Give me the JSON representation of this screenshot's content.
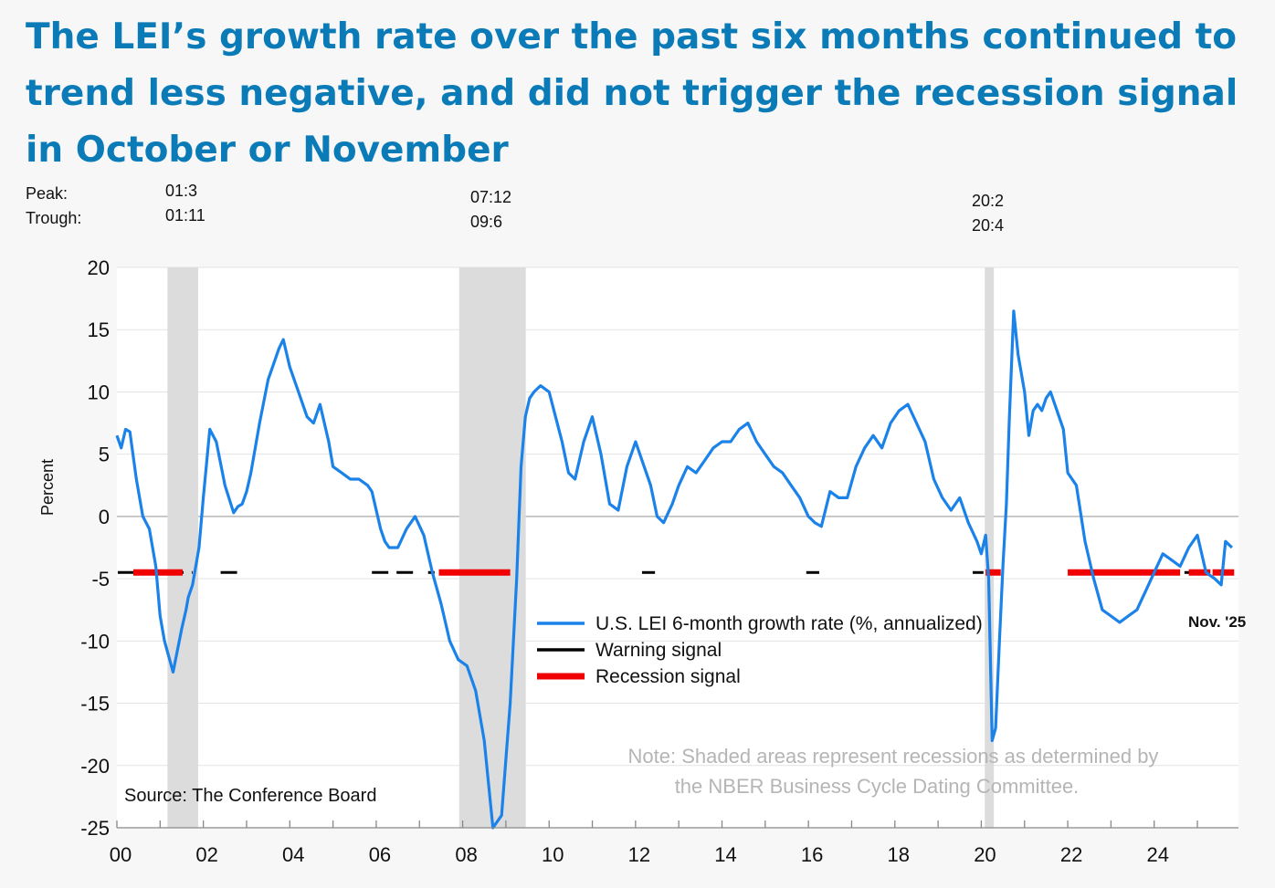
{
  "title": "The LEI’s growth rate over the past six months continued to trend less negative, and did not trigger the recession signal in October or November",
  "peak_trough": {
    "peak_label": "Peak:",
    "trough_label": "Trough:",
    "dates": [
      {
        "peak": "01:3",
        "trough": "01:11"
      },
      {
        "peak": "07:12",
        "trough": "09:6"
      },
      {
        "peak": "20:2",
        "trough": "20:4"
      }
    ]
  },
  "chart_data": {
    "type": "line",
    "ylabel": "Percent",
    "ylim": [
      -25,
      20
    ],
    "yticks": [
      20,
      15,
      10,
      5,
      0,
      -5,
      -10,
      -15,
      -20,
      -25
    ],
    "xlim": [
      2000,
      2025.95
    ],
    "xticks": [
      {
        "x": 2000,
        "label": "00"
      },
      {
        "x": 2002,
        "label": "02"
      },
      {
        "x": 2004,
        "label": "04"
      },
      {
        "x": 2006,
        "label": "06"
      },
      {
        "x": 2008,
        "label": "08"
      },
      {
        "x": 2010,
        "label": "10"
      },
      {
        "x": 2012,
        "label": "12"
      },
      {
        "x": 2014,
        "label": "14"
      },
      {
        "x": 2016,
        "label": "16"
      },
      {
        "x": 2018,
        "label": "18"
      },
      {
        "x": 2020,
        "label": "20"
      },
      {
        "x": 2022,
        "label": "22"
      },
      {
        "x": 2024,
        "label": "24"
      }
    ],
    "recessions": [
      [
        2001.17,
        2001.88
      ],
      [
        2007.92,
        2009.46
      ],
      [
        2020.08,
        2020.29
      ]
    ],
    "series": [
      {
        "name": "U.S. LEI 6-month growth rate (%, annualized)",
        "color": "#1a82e8",
        "x": [
          2000.0,
          2000.1,
          2000.2,
          2000.3,
          2000.45,
          2000.6,
          2000.75,
          2000.9,
          2001.0,
          2001.1,
          2001.3,
          2001.5,
          2001.6,
          2001.65,
          2001.75,
          2001.9,
          2002.0,
          2002.15,
          2002.3,
          2002.5,
          2002.7,
          2002.8,
          2002.9,
          2003.0,
          2003.1,
          2003.3,
          2003.5,
          2003.6,
          2003.75,
          2003.85,
          2004.0,
          2004.2,
          2004.4,
          2004.55,
          2004.7,
          2004.9,
          2005.0,
          2005.2,
          2005.4,
          2005.6,
          2005.8,
          2005.9,
          2006.1,
          2006.2,
          2006.3,
          2006.5,
          2006.7,
          2006.9,
          2007.1,
          2007.3,
          2007.5,
          2007.7,
          2007.9,
          2008.1,
          2008.3,
          2008.5,
          2008.7,
          2008.9,
          2009.1,
          2009.25,
          2009.35,
          2009.45,
          2009.55,
          2009.65,
          2009.8,
          2010.0,
          2010.15,
          2010.3,
          2010.45,
          2010.6,
          2010.8,
          2011.0,
          2011.2,
          2011.4,
          2011.6,
          2011.8,
          2012.0,
          2012.2,
          2012.35,
          2012.5,
          2012.65,
          2012.85,
          2013.0,
          2013.2,
          2013.4,
          2013.6,
          2013.8,
          2014.0,
          2014.2,
          2014.4,
          2014.6,
          2014.8,
          2015.0,
          2015.2,
          2015.4,
          2015.6,
          2015.8,
          2016.0,
          2016.15,
          2016.3,
          2016.5,
          2016.7,
          2016.9,
          2017.1,
          2017.3,
          2017.5,
          2017.7,
          2017.9,
          2018.1,
          2018.3,
          2018.5,
          2018.7,
          2018.9,
          2019.1,
          2019.3,
          2019.5,
          2019.7,
          2019.9,
          2020.0,
          2020.1,
          2020.17,
          2020.25,
          2020.33,
          2020.42,
          2020.5,
          2020.58,
          2020.65,
          2020.75,
          2020.85,
          2021.0,
          2021.1,
          2021.2,
          2021.3,
          2021.4,
          2021.5,
          2021.6,
          2021.8,
          2021.9,
          2022.0,
          2022.2,
          2022.4,
          2022.6,
          2022.8,
          2023.0,
          2023.2,
          2023.4,
          2023.6,
          2023.8,
          2024.0,
          2024.2,
          2024.4,
          2024.6,
          2024.8,
          2025.0,
          2025.2,
          2025.4,
          2025.55,
          2025.65,
          2025.8
        ],
        "y": [
          6.5,
          5.5,
          7.0,
          6.8,
          3.0,
          0.0,
          -1.0,
          -4.0,
          -8.0,
          -10.0,
          -12.5,
          -9.0,
          -7.5,
          -6.5,
          -5.5,
          -2.5,
          1.5,
          7.0,
          6.0,
          2.5,
          0.3,
          0.8,
          1.0,
          2.0,
          3.5,
          7.5,
          11.0,
          12.0,
          13.5,
          14.2,
          12.0,
          10.0,
          8.0,
          7.5,
          9.0,
          6.0,
          4.0,
          3.5,
          3.0,
          3.0,
          2.5,
          2.0,
          -1.0,
          -2.0,
          -2.5,
          -2.5,
          -1.0,
          0.0,
          -1.5,
          -4.5,
          -7.0,
          -10.0,
          -11.5,
          -12.0,
          -14.0,
          -18.0,
          -25.0,
          -24.0,
          -15.0,
          -5.0,
          4.0,
          8.0,
          9.5,
          10.0,
          10.5,
          10.0,
          8.0,
          6.0,
          3.5,
          3.0,
          6.0,
          8.0,
          5.0,
          1.0,
          0.5,
          4.0,
          6.0,
          4.0,
          2.5,
          0.0,
          -0.5,
          1.0,
          2.5,
          4.0,
          3.5,
          4.5,
          5.5,
          6.0,
          6.0,
          7.0,
          7.5,
          6.0,
          5.0,
          4.0,
          3.5,
          2.5,
          1.5,
          0.0,
          -0.5,
          -0.8,
          2.0,
          1.5,
          1.5,
          4.0,
          5.5,
          6.5,
          5.5,
          7.5,
          8.5,
          9.0,
          7.5,
          6.0,
          3.0,
          1.5,
          0.5,
          1.5,
          -0.5,
          -2.0,
          -3.0,
          -1.5,
          -5.0,
          -18.0,
          -17.0,
          -10.0,
          -4.0,
          1.0,
          8.0,
          16.5,
          13.0,
          10.0,
          6.5,
          8.5,
          9.0,
          8.5,
          9.5,
          10.0,
          8.0,
          7.0,
          3.5,
          2.5,
          -2.0,
          -5.0,
          -7.5,
          -8.0,
          -8.5,
          -8.0,
          -7.5,
          -6.0,
          -4.5,
          -3.0,
          -3.5,
          -4.0,
          -2.5,
          -1.5,
          -4.5,
          -5.0,
          -5.5,
          -2.0,
          -2.5
        ]
      },
      {
        "name": "Warning signal",
        "color": "#000000"
      },
      {
        "name": "Recession signal",
        "color": "#f00000"
      }
    ],
    "signal_level": -4.5,
    "warning_segments": [
      [
        2000.02,
        2001.75
      ],
      [
        2002.4,
        2002.8
      ],
      [
        2005.9,
        2006.95
      ],
      [
        2007.2,
        2007.35
      ],
      [
        2012.15,
        2012.45
      ],
      [
        2015.95,
        2016.25
      ],
      [
        2019.8,
        2020.05
      ],
      [
        2024.7,
        2025.0
      ]
    ],
    "recession_segments": [
      [
        2000.38,
        2001.52
      ],
      [
        2007.45,
        2009.1
      ],
      [
        2020.1,
        2020.45
      ],
      [
        2022.0,
        2024.6
      ],
      [
        2024.8,
        2025.3
      ],
      [
        2025.35,
        2025.85
      ]
    ],
    "legend": [
      "U.S. LEI 6-month growth rate (%, annualized)",
      "Warning signal",
      "Recession signal"
    ],
    "end_label": "Nov. '25",
    "source": "Source: The Conference Board",
    "note_line1": "Note: Shaded areas represent recessions as determined by",
    "note_line2": "the NBER Business Cycle Dating Committee."
  }
}
